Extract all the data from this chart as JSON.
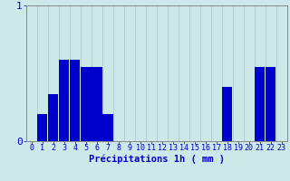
{
  "values": [
    0,
    0.2,
    0.35,
    0.6,
    0.6,
    0.55,
    0.55,
    0.2,
    0,
    0,
    0,
    0,
    0,
    0,
    0,
    0,
    0,
    0,
    0.4,
    0,
    0,
    0.55,
    0.55,
    0
  ],
  "n_bars": 24,
  "ylim": [
    0,
    1.0
  ],
  "xlabel": "Précipitations 1h ( mm )",
  "bar_color": "#0000cc",
  "bg_color": "#cce8e8",
  "grid_color_v": "#e8b0b0",
  "grid_color_h": "#c0d0d0",
  "axis_color": "#888888",
  "text_color": "#0000cc",
  "tick_labels": [
    "0",
    "1",
    "2",
    "3",
    "4",
    "5",
    "6",
    "7",
    "8",
    "9",
    "10",
    "11",
    "12",
    "13",
    "14",
    "15",
    "16",
    "17",
    "18",
    "19",
    "20",
    "21",
    "22",
    "23"
  ],
  "ytick_labels": [
    "0",
    "1"
  ],
  "yticks": [
    0,
    1
  ],
  "xlabel_fontsize": 7.5,
  "tick_fontsize": 6.0
}
